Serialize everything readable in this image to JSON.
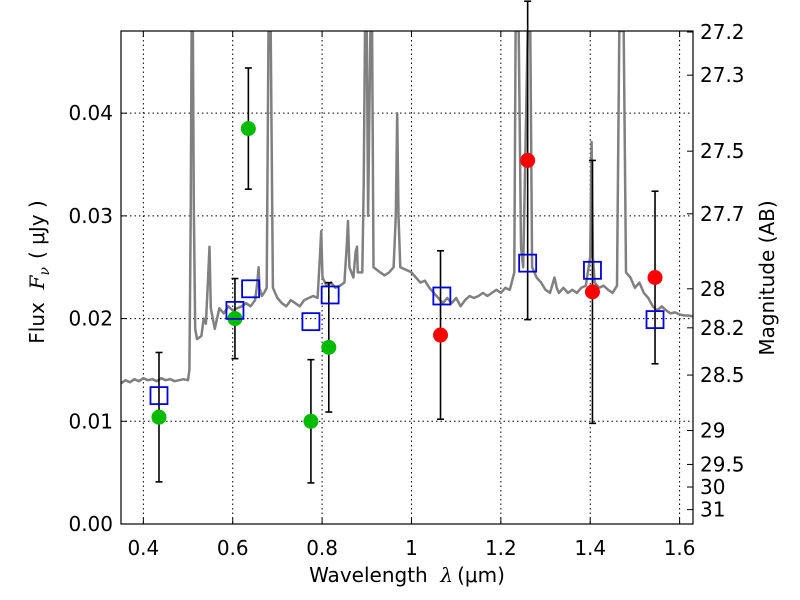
{
  "chart_data": {
    "type": "scatter",
    "xlabel": {
      "prefix": "Wavelength  ",
      "symbol": "λ",
      "unit": "(μm)"
    },
    "ylabel": {
      "prefix": "Flux  ",
      "symbol": "F",
      "subscript": "ν",
      "unit": "( μJy )"
    },
    "y2label": "Magnitude (AB)",
    "xlim": [
      0.35,
      1.63
    ],
    "ylim": [
      0.0,
      0.048
    ],
    "grid": true,
    "x_ticks": [
      0.4,
      0.6,
      0.8,
      1.0,
      1.2,
      1.4,
      1.6
    ],
    "x_tick_labels": [
      "0.4",
      "0.6",
      "0.8",
      "1",
      "1.2",
      "1.4",
      "1.6"
    ],
    "y_ticks": [
      0.0,
      0.01,
      0.02,
      0.03,
      0.04
    ],
    "y_tick_labels": [
      "0.00",
      "0.01",
      "0.02",
      "0.03",
      "0.04"
    ],
    "y2_ticks": [
      {
        "label": "27.2",
        "flux": 0.0479
      },
      {
        "label": "27.3",
        "flux": 0.0437
      },
      {
        "label": "27.5",
        "flux": 0.0363
      },
      {
        "label": "27.7",
        "flux": 0.0302
      },
      {
        "label": "28",
        "flux": 0.0229
      },
      {
        "label": "28.2",
        "flux": 0.0191
      },
      {
        "label": "28.5",
        "flux": 0.0145
      },
      {
        "label": "29",
        "flux": 0.0091
      },
      {
        "label": "29.5",
        "flux": 0.0058
      },
      {
        "label": "30",
        "flux": 0.0036
      },
      {
        "label": "31",
        "flux": 0.0014
      }
    ],
    "series": [
      {
        "marker": "circle",
        "color": "#00bb00",
        "points": [
          {
            "x": 0.435,
            "y": 0.0104,
            "err": 0.0063
          },
          {
            "x": 0.605,
            "y": 0.02,
            "err": 0.0039
          },
          {
            "x": 0.635,
            "y": 0.0385,
            "err": 0.0059
          },
          {
            "x": 0.775,
            "y": 0.01,
            "err": 0.006
          },
          {
            "x": 0.815,
            "y": 0.0172,
            "err": 0.0063
          }
        ]
      },
      {
        "marker": "circle",
        "color": "#ff0000",
        "points": [
          {
            "x": 1.065,
            "y": 0.0184,
            "err": 0.0082
          },
          {
            "x": 1.26,
            "y": 0.0354,
            "err": 0.0155
          },
          {
            "x": 1.405,
            "y": 0.0226,
            "err": 0.0128
          },
          {
            "x": 1.545,
            "y": 0.024,
            "err": 0.0084
          }
        ]
      },
      {
        "marker": "square",
        "color": "#0000dd",
        "points": [
          {
            "x": 0.435,
            "y": 0.0125
          },
          {
            "x": 0.605,
            "y": 0.0208
          },
          {
            "x": 0.64,
            "y": 0.0229
          },
          {
            "x": 0.775,
            "y": 0.0197
          },
          {
            "x": 0.818,
            "y": 0.0223
          },
          {
            "x": 1.068,
            "y": 0.0222
          },
          {
            "x": 1.26,
            "y": 0.0254
          },
          {
            "x": 1.405,
            "y": 0.0247
          },
          {
            "x": 1.545,
            "y": 0.0199
          }
        ]
      }
    ],
    "spectrum": {
      "color": "#808080",
      "points": [
        [
          0.35,
          0.0137
        ],
        [
          0.36,
          0.014
        ],
        [
          0.37,
          0.0138
        ],
        [
          0.38,
          0.0141
        ],
        [
          0.39,
          0.0139
        ],
        [
          0.4,
          0.0142
        ],
        [
          0.41,
          0.014
        ],
        [
          0.42,
          0.0141
        ],
        [
          0.43,
          0.0139
        ],
        [
          0.44,
          0.0142
        ],
        [
          0.45,
          0.014
        ],
        [
          0.46,
          0.0141
        ],
        [
          0.47,
          0.0139
        ],
        [
          0.48,
          0.014
        ],
        [
          0.49,
          0.0141
        ],
        [
          0.5,
          0.014
        ],
        [
          0.503,
          0.015
        ],
        [
          0.506,
          0.03
        ],
        [
          0.508,
          0.048
        ],
        [
          0.511,
          0.048
        ],
        [
          0.513,
          0.031
        ],
        [
          0.516,
          0.019
        ],
        [
          0.52,
          0.018
        ],
        [
          0.53,
          0.0183
        ],
        [
          0.535,
          0.02
        ],
        [
          0.54,
          0.0195
        ],
        [
          0.545,
          0.024
        ],
        [
          0.548,
          0.027
        ],
        [
          0.551,
          0.021
        ],
        [
          0.56,
          0.019
        ],
        [
          0.57,
          0.021
        ],
        [
          0.58,
          0.0205
        ],
        [
          0.59,
          0.0212
        ],
        [
          0.6,
          0.0208
        ],
        [
          0.61,
          0.021
        ],
        [
          0.62,
          0.0212
        ],
        [
          0.63,
          0.0215
        ],
        [
          0.64,
          0.0212
        ],
        [
          0.65,
          0.0218
        ],
        [
          0.655,
          0.0235
        ],
        [
          0.658,
          0.025
        ],
        [
          0.66,
          0.023
        ],
        [
          0.665,
          0.0222
        ],
        [
          0.67,
          0.0225
        ],
        [
          0.676,
          0.023
        ],
        [
          0.68,
          0.048
        ],
        [
          0.685,
          0.048
        ],
        [
          0.69,
          0.023
        ],
        [
          0.7,
          0.022
        ],
        [
          0.71,
          0.0215
        ],
        [
          0.72,
          0.0212
        ],
        [
          0.73,
          0.0218
        ],
        [
          0.74,
          0.0215
        ],
        [
          0.75,
          0.0212
        ],
        [
          0.76,
          0.0218
        ],
        [
          0.77,
          0.022
        ],
        [
          0.78,
          0.0222
        ],
        [
          0.79,
          0.022
        ],
        [
          0.795,
          0.026
        ],
        [
          0.798,
          0.0285
        ],
        [
          0.801,
          0.024
        ],
        [
          0.81,
          0.0232
        ],
        [
          0.82,
          0.0235
        ],
        [
          0.83,
          0.023
        ],
        [
          0.84,
          0.0232
        ],
        [
          0.85,
          0.0235
        ],
        [
          0.855,
          0.027
        ],
        [
          0.858,
          0.0295
        ],
        [
          0.861,
          0.025
        ],
        [
          0.87,
          0.024
        ],
        [
          0.875,
          0.0265
        ],
        [
          0.878,
          0.027
        ],
        [
          0.88,
          0.0245
        ],
        [
          0.89,
          0.0245
        ],
        [
          0.893,
          0.033
        ],
        [
          0.896,
          0.048
        ],
        [
          0.9,
          0.048
        ],
        [
          0.903,
          0.03
        ],
        [
          0.908,
          0.048
        ],
        [
          0.912,
          0.048
        ],
        [
          0.915,
          0.025
        ],
        [
          0.93,
          0.0245
        ],
        [
          0.94,
          0.0242
        ],
        [
          0.95,
          0.0245
        ],
        [
          0.96,
          0.025
        ],
        [
          0.965,
          0.03
        ],
        [
          0.968,
          0.04
        ],
        [
          0.971,
          0.03
        ],
        [
          0.975,
          0.025
        ],
        [
          0.99,
          0.0247
        ],
        [
          1.0,
          0.0245
        ],
        [
          1.01,
          0.024
        ],
        [
          1.02,
          0.0235
        ],
        [
          1.03,
          0.0237
        ],
        [
          1.04,
          0.023
        ],
        [
          1.05,
          0.0225
        ],
        [
          1.06,
          0.022
        ],
        [
          1.07,
          0.0215
        ],
        [
          1.08,
          0.022
        ],
        [
          1.09,
          0.0215
        ],
        [
          1.1,
          0.022
        ],
        [
          1.11,
          0.0212
        ],
        [
          1.12,
          0.0218
        ],
        [
          1.13,
          0.0222
        ],
        [
          1.14,
          0.022
        ],
        [
          1.15,
          0.0222
        ],
        [
          1.16,
          0.0225
        ],
        [
          1.17,
          0.0222
        ],
        [
          1.18,
          0.0225
        ],
        [
          1.19,
          0.0228
        ],
        [
          1.2,
          0.0225
        ],
        [
          1.21,
          0.023
        ],
        [
          1.22,
          0.0228
        ],
        [
          1.23,
          0.0245
        ],
        [
          1.233,
          0.048
        ],
        [
          1.24,
          0.048
        ],
        [
          1.245,
          0.027
        ],
        [
          1.25,
          0.025
        ],
        [
          1.26,
          0.048
        ],
        [
          1.266,
          0.048
        ],
        [
          1.27,
          0.025
        ],
        [
          1.28,
          0.024
        ],
        [
          1.29,
          0.0235
        ],
        [
          1.3,
          0.0228
        ],
        [
          1.31,
          0.0225
        ],
        [
          1.32,
          0.024
        ],
        [
          1.325,
          0.023
        ],
        [
          1.33,
          0.0225
        ],
        [
          1.34,
          0.023
        ],
        [
          1.35,
          0.0225
        ],
        [
          1.36,
          0.0228
        ],
        [
          1.37,
          0.0225
        ],
        [
          1.38,
          0.023
        ],
        [
          1.39,
          0.0232
        ],
        [
          1.4,
          0.026
        ],
        [
          1.403,
          0.0372
        ],
        [
          1.406,
          0.026
        ],
        [
          1.41,
          0.0235
        ],
        [
          1.42,
          0.023
        ],
        [
          1.43,
          0.0232
        ],
        [
          1.44,
          0.0228
        ],
        [
          1.45,
          0.0225
        ],
        [
          1.46,
          0.0232
        ],
        [
          1.465,
          0.048
        ],
        [
          1.475,
          0.048
        ],
        [
          1.48,
          0.0245
        ],
        [
          1.49,
          0.024
        ],
        [
          1.5,
          0.023
        ],
        [
          1.51,
          0.0235
        ],
        [
          1.52,
          0.0225
        ],
        [
          1.53,
          0.022
        ],
        [
          1.54,
          0.0212
        ],
        [
          1.55,
          0.0208
        ],
        [
          1.56,
          0.0212
        ],
        [
          1.57,
          0.0208
        ],
        [
          1.58,
          0.0205
        ],
        [
          1.59,
          0.0206
        ],
        [
          1.6,
          0.0204
        ],
        [
          1.61,
          0.0203
        ],
        [
          1.62,
          0.0203
        ],
        [
          1.63,
          0.0202
        ]
      ]
    }
  }
}
